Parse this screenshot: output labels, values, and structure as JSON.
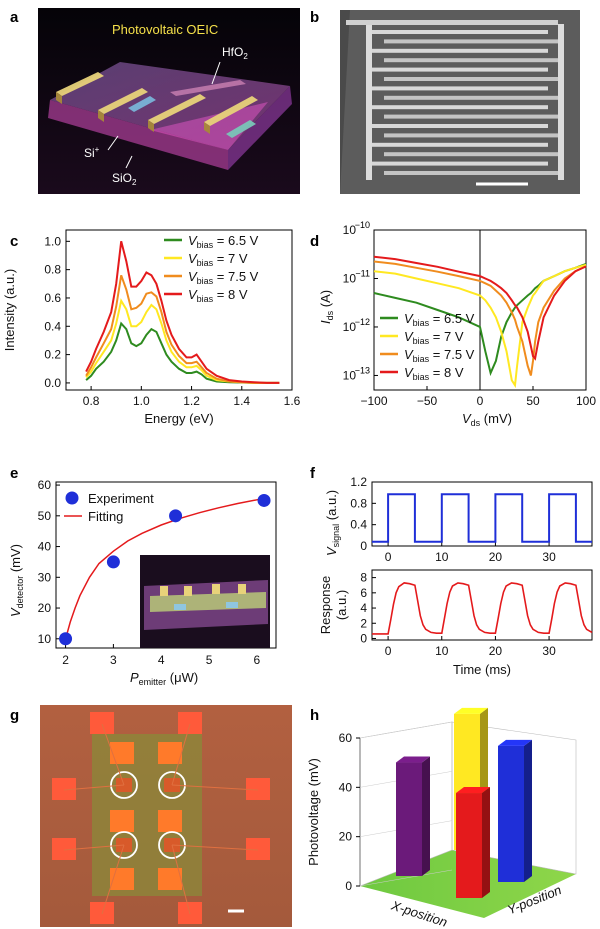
{
  "panels": {
    "a": "a",
    "b": "b",
    "c": "c",
    "d": "d",
    "e": "e",
    "f": "f",
    "g": "g",
    "h": "h"
  },
  "photo_a": {
    "title": "Photovoltaic OEIC",
    "labels": {
      "hfo2": "HfO",
      "hfo2_sub": "2",
      "si": "Si",
      "si_sup": "+",
      "sio2": "SiO",
      "sio2_sub": "2"
    }
  },
  "colors": {
    "green": "#2e8b1f",
    "yellow": "#ffe822",
    "orange": "#f08c1e",
    "red": "#e41a1c",
    "blue": "#1f2fd8",
    "purple": "#6b1a7a"
  },
  "chart_data": [
    {
      "panel": "c",
      "type": "line",
      "xlabel": "Energy (eV)",
      "ylabel": "Intensity (a.u.)",
      "xlim": [
        0.7,
        1.6
      ],
      "ylim": [
        -0.05,
        1.08
      ],
      "xticks": [
        "0.8",
        "1.0",
        "1.2",
        "1.4",
        "1.6"
      ],
      "yticks": [
        "0.0",
        "0.2",
        "0.4",
        "0.6",
        "0.8",
        "1.0"
      ],
      "legend_position": "top-right",
      "x": [
        0.78,
        0.8,
        0.82,
        0.85,
        0.88,
        0.9,
        0.92,
        0.94,
        0.96,
        0.98,
        1.0,
        1.02,
        1.04,
        1.06,
        1.08,
        1.1,
        1.12,
        1.15,
        1.18,
        1.2,
        1.22,
        1.24,
        1.26,
        1.3,
        1.35,
        1.4,
        1.45,
        1.5,
        1.55
      ],
      "series": [
        {
          "name": "6.5 V",
          "color": "#2e8b1f",
          "values": [
            0.02,
            0.05,
            0.1,
            0.15,
            0.22,
            0.3,
            0.42,
            0.38,
            0.28,
            0.26,
            0.28,
            0.34,
            0.38,
            0.36,
            0.28,
            0.2,
            0.15,
            0.1,
            0.07,
            0.07,
            0.08,
            0.06,
            0.03,
            0.01,
            0.005,
            0.003,
            0.0,
            0.0,
            0.0
          ]
        },
        {
          "name": "7 V",
          "color": "#ffe822",
          "values": [
            0.04,
            0.08,
            0.14,
            0.22,
            0.3,
            0.42,
            0.58,
            0.52,
            0.4,
            0.4,
            0.43,
            0.5,
            0.55,
            0.52,
            0.42,
            0.3,
            0.22,
            0.15,
            0.11,
            0.11,
            0.12,
            0.09,
            0.05,
            0.02,
            0.01,
            0.005,
            0.0,
            0.0,
            0.0
          ]
        },
        {
          "name": "7.5 V",
          "color": "#f08c1e",
          "values": [
            0.05,
            0.11,
            0.18,
            0.28,
            0.38,
            0.54,
            0.76,
            0.66,
            0.52,
            0.53,
            0.56,
            0.63,
            0.64,
            0.61,
            0.5,
            0.36,
            0.27,
            0.19,
            0.14,
            0.14,
            0.15,
            0.11,
            0.07,
            0.03,
            0.01,
            0.005,
            0.0,
            0.0,
            0.0
          ]
        },
        {
          "name": "8 V",
          "color": "#e41a1c",
          "values": [
            0.08,
            0.15,
            0.24,
            0.36,
            0.5,
            0.7,
            1.0,
            0.86,
            0.68,
            0.68,
            0.72,
            0.78,
            0.76,
            0.7,
            0.58,
            0.44,
            0.34,
            0.24,
            0.18,
            0.18,
            0.2,
            0.15,
            0.1,
            0.05,
            0.02,
            0.01,
            0.005,
            0.0,
            0.0
          ]
        }
      ]
    },
    {
      "panel": "d",
      "type": "line",
      "xlabel": "V",
      "xlabel_sub": "ds",
      "xlabel_unit": " (mV)",
      "ylabel": "I",
      "ylabel_sub": "ds",
      "ylabel_unit": " (A)",
      "xlim": [
        -100,
        100
      ],
      "ylim_log10": [
        -13.3,
        -10
      ],
      "yscale": "log",
      "xticks": [
        "-100",
        "-50",
        "0",
        "50",
        "100"
      ],
      "yticks": [
        "10",
        "10",
        "10",
        "10"
      ],
      "ytick_exponents": [
        "-10",
        "-11",
        "-12",
        "-13"
      ],
      "legend_position": "bottom-left",
      "x": [
        -100,
        -80,
        -60,
        -40,
        -20,
        0,
        5,
        10,
        15,
        20,
        25,
        30,
        33,
        35,
        40,
        45,
        48,
        50,
        52,
        55,
        60,
        70,
        80,
        90,
        100
      ],
      "series": [
        {
          "name": "6.5 V",
          "color": "#2e8b1f",
          "log10_values": [
            -11.3,
            -11.4,
            -11.5,
            -11.65,
            -11.8,
            -12.0,
            -12.5,
            -12.95,
            -12.7,
            -12.2,
            -11.9,
            -11.7,
            -11.6,
            -11.55,
            -11.45,
            -11.35,
            -11.3,
            -11.25,
            -11.2,
            -11.15,
            -11.05,
            -10.95,
            -10.85,
            -10.78,
            -10.7
          ]
        },
        {
          "name": "7 V",
          "color": "#ffe822",
          "log10_values": [
            -10.85,
            -10.9,
            -11.0,
            -11.1,
            -11.2,
            -11.35,
            -11.45,
            -11.6,
            -11.8,
            -12.1,
            -12.5,
            -13.1,
            -13.2,
            -12.8,
            -11.9,
            -11.6,
            -11.45,
            -11.35,
            -11.3,
            -11.2,
            -11.05,
            -10.95,
            -10.85,
            -10.78,
            -10.72
          ]
        },
        {
          "name": "7.5 V",
          "color": "#f08c1e",
          "log10_values": [
            -10.65,
            -10.7,
            -10.78,
            -10.86,
            -10.95,
            -11.05,
            -11.1,
            -11.15,
            -11.25,
            -11.35,
            -11.5,
            -11.7,
            -11.85,
            -12.0,
            -12.3,
            -12.8,
            -13.0,
            -12.7,
            -12.3,
            -11.9,
            -11.6,
            -11.25,
            -11.0,
            -10.85,
            -10.75
          ]
        },
        {
          "name": "8 V",
          "color": "#e41a1c",
          "log10_values": [
            -10.55,
            -10.6,
            -10.68,
            -10.76,
            -10.86,
            -10.95,
            -11.0,
            -11.05,
            -11.12,
            -11.2,
            -11.3,
            -11.45,
            -11.55,
            -11.6,
            -11.8,
            -12.1,
            -12.4,
            -12.6,
            -12.65,
            -12.3,
            -11.8,
            -11.35,
            -11.05,
            -10.85,
            -10.75
          ]
        }
      ]
    },
    {
      "panel": "e",
      "type": "scatter",
      "xlabel": "P",
      "xlabel_sub": "emitter",
      "xlabel_unit": " (μW)",
      "ylabel": "V",
      "ylabel_sub": "detector",
      "ylabel_unit": " (mV)",
      "xlim": [
        1.8,
        6.4
      ],
      "ylim": [
        7,
        61
      ],
      "xticks": [
        "2",
        "3",
        "4",
        "5",
        "6"
      ],
      "yticks": [
        "10",
        "20",
        "30",
        "40",
        "50",
        "60"
      ],
      "legend_position": "top-left",
      "series": [
        {
          "name": "Experiment",
          "color": "#1f2fd8",
          "x": [
            2.0,
            3.0,
            4.3,
            6.15
          ],
          "y": [
            10,
            35,
            50,
            55
          ]
        },
        {
          "name": "Fitting",
          "color": "#e41a1c",
          "x": [
            2.0,
            2.1,
            2.2,
            2.3,
            2.5,
            2.7,
            3.0,
            3.3,
            3.6,
            4.0,
            4.4,
            4.8,
            5.2,
            5.6,
            6.0,
            6.2
          ],
          "y": [
            10,
            15.5,
            20,
            24,
            30,
            34.5,
            38.5,
            41.8,
            44.3,
            47,
            49.2,
            51,
            52.6,
            54,
            55.2,
            55.8
          ]
        }
      ]
    },
    {
      "panel": "f-top",
      "type": "line",
      "ylabel": "V",
      "ylabel_sub": "signal",
      "ylabel_unit": " (a.u.)",
      "xlim": [
        -3,
        38
      ],
      "ylim": [
        0,
        1.2
      ],
      "xticks": [
        "0",
        "10",
        "20",
        "30"
      ],
      "yticks": [
        "0",
        "0.4",
        "0.8",
        "1.2"
      ],
      "color": "#1f2fd8",
      "x": [
        -3,
        0,
        0,
        5,
        5,
        10,
        10,
        15,
        15,
        20,
        20,
        25,
        25,
        30,
        30,
        35,
        35,
        38
      ],
      "values": [
        0.08,
        0.08,
        0.97,
        0.97,
        0.08,
        0.08,
        0.97,
        0.97,
        0.08,
        0.08,
        0.97,
        0.97,
        0.08,
        0.08,
        0.97,
        0.97,
        0.08,
        0.08
      ]
    },
    {
      "panel": "f-bottom",
      "type": "line",
      "xlabel": "Time (ms)",
      "ylabel": "Response",
      "ylabel2": "(a.u.)",
      "xlim": [
        -3,
        38
      ],
      "ylim": [
        -0.2,
        9
      ],
      "xticks": [
        "0",
        "10",
        "20",
        "30"
      ],
      "yticks": [
        "0",
        "2",
        "4",
        "6",
        "8"
      ],
      "color": "#e41a1c",
      "x": [
        -3,
        -1,
        0,
        0.5,
        1,
        1.5,
        2,
        3,
        4,
        5,
        5.5,
        6,
        6.5,
        7,
        8,
        9,
        10,
        10.5,
        11,
        11.5,
        12,
        13,
        14,
        15,
        15.5,
        16,
        16.5,
        17,
        18,
        19,
        20,
        20.5,
        21,
        21.5,
        22,
        23,
        24,
        25,
        25.5,
        26,
        26.5,
        27,
        28,
        29,
        30,
        30.5,
        31,
        31.5,
        32,
        33,
        34,
        35,
        35.5,
        36,
        36.5,
        37,
        38
      ],
      "values": [
        0.6,
        0.6,
        0.6,
        2.5,
        4.5,
        6.0,
        6.8,
        7.3,
        7.2,
        7.0,
        5.0,
        3.0,
        1.8,
        1.2,
        0.8,
        0.7,
        0.7,
        2.6,
        4.6,
        6.1,
        6.9,
        7.3,
        7.2,
        7.0,
        5.0,
        3.0,
        1.8,
        1.2,
        0.8,
        0.7,
        0.7,
        2.6,
        4.6,
        6.1,
        6.9,
        7.3,
        7.2,
        7.0,
        5.0,
        3.0,
        1.8,
        1.2,
        0.8,
        0.7,
        0.7,
        2.6,
        4.6,
        6.1,
        6.9,
        7.3,
        7.2,
        7.0,
        5.0,
        3.0,
        1.8,
        1.2,
        0.8
      ]
    },
    {
      "panel": "h",
      "type": "bar",
      "zlabel": "Photovoltage (mV)",
      "xlabel": "X-position",
      "ylabel": "Y-position",
      "zlim": [
        0,
        60
      ],
      "zticks": [
        "0",
        "20",
        "40",
        "60"
      ],
      "bars": [
        {
          "name": "back-left",
          "color": "#6b1a7a",
          "value": 40
        },
        {
          "name": "back-center",
          "color": "#ffe822",
          "value": 48
        },
        {
          "name": "front-center",
          "color": "#e41a1c",
          "value": 37
        },
        {
          "name": "right",
          "color": "#1f2fd8",
          "value": 48
        }
      ]
    }
  ],
  "legend_prefix": "V",
  "legend_sub": "bias",
  "legend_eq": " = "
}
